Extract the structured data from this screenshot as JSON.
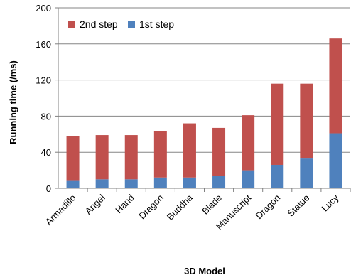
{
  "chart_data": {
    "type": "bar",
    "stacked": true,
    "categories": [
      "Armadillo",
      "Angel",
      "Hand",
      "Dragon",
      "Buddha",
      "Blade",
      "Manuscript",
      "Dragon",
      "Statue",
      "Lucy"
    ],
    "series": [
      {
        "name": "1st step",
        "color": "#4f81bd",
        "values": [
          9,
          10,
          10,
          12,
          12,
          14,
          20,
          26,
          33,
          61
        ]
      },
      {
        "name": "2nd step",
        "color": "#c0504d",
        "values": [
          49,
          49,
          49,
          51,
          60,
          53,
          61,
          90,
          83,
          105
        ]
      }
    ],
    "legend_order": [
      "2nd step",
      "1st step"
    ],
    "legend_position": "top-left inside plot",
    "xlabel": "3D Model",
    "ylabel": "Running time (/ms)",
    "ylim": [
      0,
      200
    ],
    "yticks": [
      0,
      40,
      80,
      120,
      160,
      200
    ],
    "grid": true
  }
}
